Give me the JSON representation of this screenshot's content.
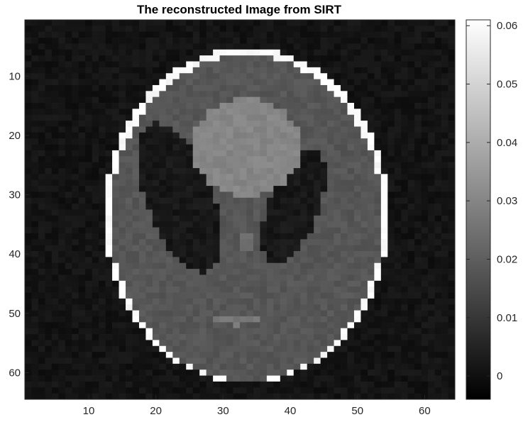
{
  "chart_data": {
    "type": "heatmap",
    "title": "The reconstructed Image from SIRT",
    "xlabel": "",
    "ylabel": "",
    "image_size": [
      64,
      64
    ],
    "xlim": [
      0.5,
      64.5
    ],
    "ylim": [
      0.5,
      64.5
    ],
    "y_direction": "reverse",
    "x_ticks": [
      10,
      20,
      30,
      40,
      50,
      60
    ],
    "x_tick_labels": [
      "10",
      "20",
      "30",
      "40",
      "50",
      "60"
    ],
    "y_ticks": [
      10,
      20,
      30,
      40,
      50,
      60
    ],
    "y_tick_labels": [
      "10",
      "20",
      "30",
      "40",
      "50",
      "60"
    ],
    "colormap": "gray",
    "clim": [
      -0.004,
      0.061
    ],
    "colorbar": {
      "ticks": [
        0,
        0.01,
        0.02,
        0.03,
        0.04,
        0.05,
        0.06
      ],
      "tick_labels": [
        "0",
        "0.01",
        "0.02",
        "0.03",
        "0.04",
        "0.05",
        "0.06"
      ]
    },
    "phantom": {
      "description_values": "Shepp-Logan head phantom reconstructed on a 64x64 grid",
      "background_value": 0.001,
      "ellipses": [
        {
          "cx": 33.5,
          "cy": 33.5,
          "rx": 21.2,
          "ry": 28.3,
          "angle_deg": 0,
          "value": 0.06
        },
        {
          "cx": 33.5,
          "cy": 33.9,
          "rx": 20.2,
          "ry": 27.4,
          "angle_deg": 0,
          "value": 0.018
        },
        {
          "cx": 23.5,
          "cy": 30.5,
          "rx": 5.0,
          "ry": 13.2,
          "angle_deg": -18,
          "value": 0.002
        },
        {
          "cx": 40.5,
          "cy": 32.0,
          "rx": 3.8,
          "ry": 10.0,
          "angle_deg": 18,
          "value": 0.002
        },
        {
          "cx": 33.5,
          "cy": 22.0,
          "rx": 8.2,
          "ry": 8.2,
          "angle_deg": 0,
          "value": 0.03
        },
        {
          "cx": 33.5,
          "cy": 28.2,
          "rx": 1.3,
          "ry": 1.3,
          "angle_deg": 0,
          "value": 0.03
        },
        {
          "cx": 33.5,
          "cy": 38.0,
          "rx": 1.1,
          "ry": 1.2,
          "angle_deg": 0,
          "value": 0.025
        },
        {
          "cx": 32.0,
          "cy": 51.2,
          "rx": 3.2,
          "ry": 0.8,
          "angle_deg": 0,
          "value": 0.026
        }
      ]
    }
  }
}
